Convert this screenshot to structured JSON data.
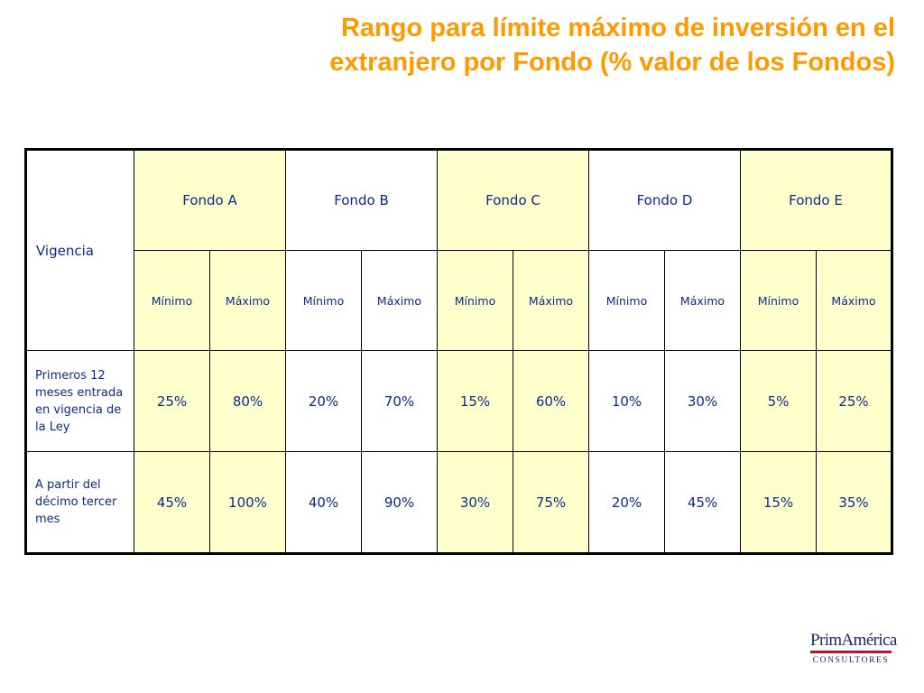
{
  "title": {
    "line1": "Rango para límite máximo de inversión en el",
    "line2": "extranjero por Fondo (% valor de los Fondos)"
  },
  "table": {
    "vigencia_label": "Vigencia",
    "fondos": [
      "Fondo A",
      "Fondo B",
      "Fondo C",
      "Fondo D",
      "Fondo E"
    ],
    "min_label": "Mínimo",
    "max_label": "Máximo",
    "rows": [
      {
        "label": "Primeros 12 meses entrada en vigencia de la Ley",
        "values": [
          "25%",
          "80%",
          "20%",
          "70%",
          "15%",
          "60%",
          "10%",
          "30%",
          "5%",
          "25%"
        ]
      },
      {
        "label": "A partir del décimo tercer mes",
        "values": [
          "45%",
          "100%",
          "40%",
          "90%",
          "30%",
          "75%",
          "20%",
          "45%",
          "15%",
          "35%"
        ]
      }
    ]
  },
  "logo": {
    "name": "PrimAmérica",
    "subtitle": "CONSULTORES"
  },
  "colors": {
    "title": "#FF9900",
    "table_text": "#0b2a8a",
    "highlight_fill": "#FFFFCC"
  }
}
